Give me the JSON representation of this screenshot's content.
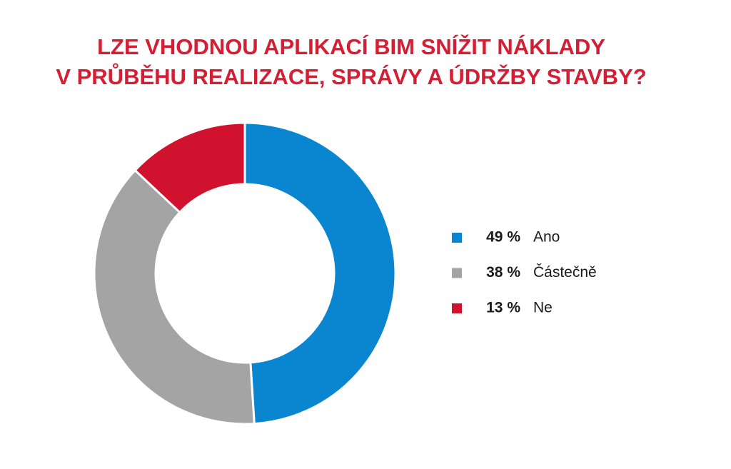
{
  "chart_data": {
    "type": "donut",
    "title": [
      "LZE VHODNOU APLIKACÍ BIM SNÍŽIT NÁKLADY",
      "V PRŮBĚHU REALIZACE, SPRÁVY A ÚDRŽBY STAVBY?"
    ],
    "categories": [
      "Ano",
      "Částečně",
      "Ne"
    ],
    "values": [
      49,
      38,
      13
    ],
    "value_labels": [
      "49 %",
      "38 %",
      "13 %"
    ],
    "colors": [
      "#0a86d0",
      "#a4a4a4",
      "#d0122e"
    ],
    "legend": "right"
  }
}
